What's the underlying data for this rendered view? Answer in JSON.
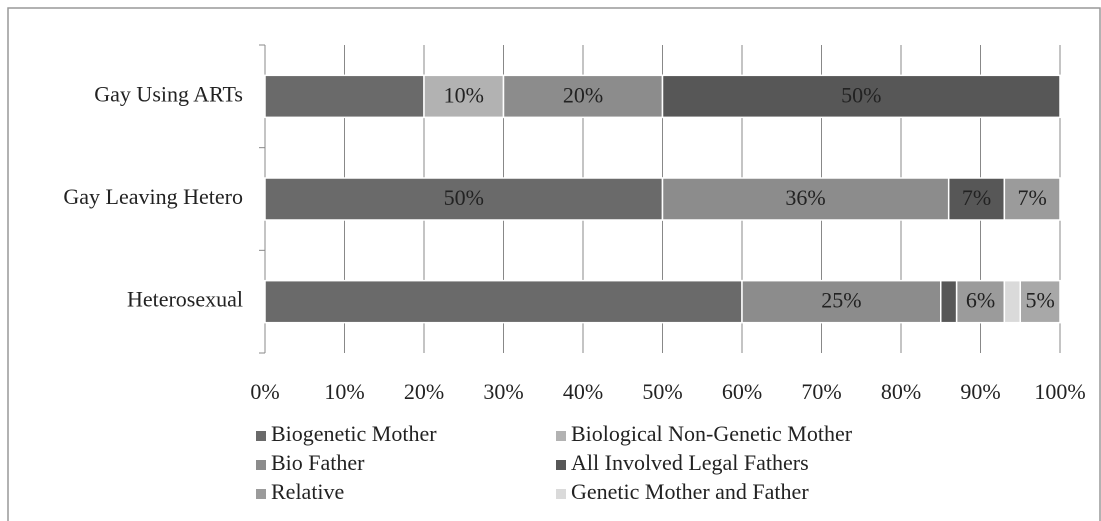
{
  "chart_data": {
    "type": "stacked_bar_horizontal",
    "categories": [
      "Gay Using ARTs",
      "Gay Leaving Hetero",
      "Heterosexual"
    ],
    "series": [
      {
        "name": "Biogenetic Mother",
        "color": "#6a6a6a",
        "values": [
          20,
          50,
          60
        ],
        "value_labels": [
          null,
          "50%",
          null
        ]
      },
      {
        "name": "Biological Non-Genetic Mother",
        "color": "#b2b2b2",
        "values": [
          10,
          null,
          null
        ],
        "value_labels": [
          "10%",
          null,
          null
        ]
      },
      {
        "name": "Bio Father",
        "color": "#8c8c8c",
        "values": [
          20,
          36,
          25
        ],
        "value_labels": [
          "20%",
          "36%",
          "25%"
        ]
      },
      {
        "name": "All Involved Legal Fathers",
        "color": "#575757",
        "values": [
          50,
          7,
          2
        ],
        "value_labels": [
          "50%",
          "7%",
          null
        ]
      },
      {
        "name": "Relative",
        "color": "#9b9b9b",
        "values": [
          null,
          7,
          6
        ],
        "value_labels": [
          null,
          "7%",
          "6%"
        ]
      },
      {
        "name": "Genetic Mother and Father",
        "color": "#dadada",
        "values": [
          null,
          null,
          2
        ],
        "value_labels": [
          null,
          null,
          null
        ]
      },
      {
        "name": null,
        "color": "#a8a8a8",
        "values": [
          null,
          null,
          5
        ],
        "value_labels": [
          null,
          null,
          "5%"
        ]
      }
    ],
    "xlim": [
      0,
      100
    ],
    "xticks": [
      {
        "value": 0,
        "label": "0%"
      },
      {
        "value": 10,
        "label": "10%"
      },
      {
        "value": 20,
        "label": "20%"
      },
      {
        "value": 30,
        "label": "30%"
      },
      {
        "value": 40,
        "label": "40%"
      },
      {
        "value": 50,
        "label": "50%"
      },
      {
        "value": 60,
        "label": "60%"
      },
      {
        "value": 70,
        "label": "70%"
      },
      {
        "value": 80,
        "label": "80%"
      },
      {
        "value": 90,
        "label": "90%"
      },
      {
        "value": 100,
        "label": "100%"
      }
    ],
    "grid": true
  }
}
